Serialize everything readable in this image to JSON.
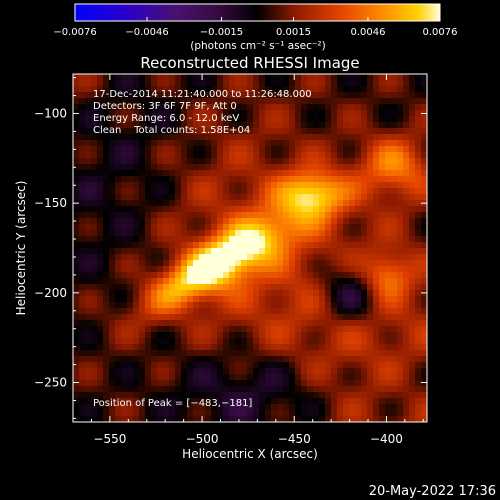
{
  "chart_data": {
    "type": "heatmap",
    "title": "Reconstructed RHESSI Image",
    "xlabel": "Heliocentric X (arcsec)",
    "ylabel": "Heliocentric Y (arcsec)",
    "xlim": [
      -570,
      -378
    ],
    "ylim": [
      -272,
      -78
    ],
    "x_ticks": [
      -550,
      -500,
      -450,
      -400
    ],
    "x_tick_labels": [
      "−550",
      "−500",
      "−450",
      "−400"
    ],
    "y_ticks": [
      -250,
      -200,
      -150,
      -100
    ],
    "y_tick_labels": [
      "−250",
      "−200",
      "−150",
      "−100"
    ],
    "info_lines": [
      "17-Dec-2014 11:21:40.000 to 11:26:48.000",
      "Detectors: 3F 6F 7F 9F, Att 0",
      "Energy Range: 6.0 - 12.0 keV",
      "Clean    Total counts: 1.58E+04"
    ],
    "peak_label": "Position of Peak = [−483,−181]",
    "peak": [
      -483,
      -181
    ],
    "colorbar": {
      "min": -0.0076,
      "max": 0.0076,
      "tick_values": [
        -0.0076,
        -0.0046,
        -0.0015,
        0.0015,
        0.0046,
        0.0076
      ],
      "tick_labels": [
        "−0.0076",
        "−0.0046",
        "−0.0015",
        "0.0015",
        "0.0046",
        "0.0076"
      ],
      "unit_label": "(photons cm⁻² s⁻¹ asec⁻²)"
    },
    "grid": false
  },
  "footer": {
    "timestamp": "20-May-2022 17:36"
  }
}
